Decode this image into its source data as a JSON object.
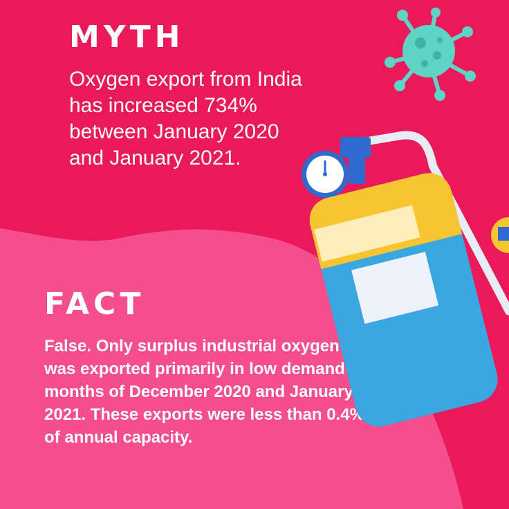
{
  "colors": {
    "background_dark_pink": "#ea1a5a",
    "background_light_pink": "#f44e8c",
    "text": "#ffffff",
    "virus": "#5fd4c6",
    "cylinder_body": "#3aa6e2",
    "cylinder_top": "#f7c531"
  },
  "icons": [
    "virus-icon",
    "oxygen-cylinder-icon",
    "pressure-gauge-icon"
  ],
  "myth": {
    "title": "MYTH",
    "body": "Oxygen export from India has increased 734% between January 2020 and January 2021."
  },
  "fact": {
    "title": "FACT",
    "body": "False. Only surplus industrial oxygen was exported primarily in low demand months of December 2020 and January 2021. These exports were less than 0.4% of annual capacity."
  }
}
